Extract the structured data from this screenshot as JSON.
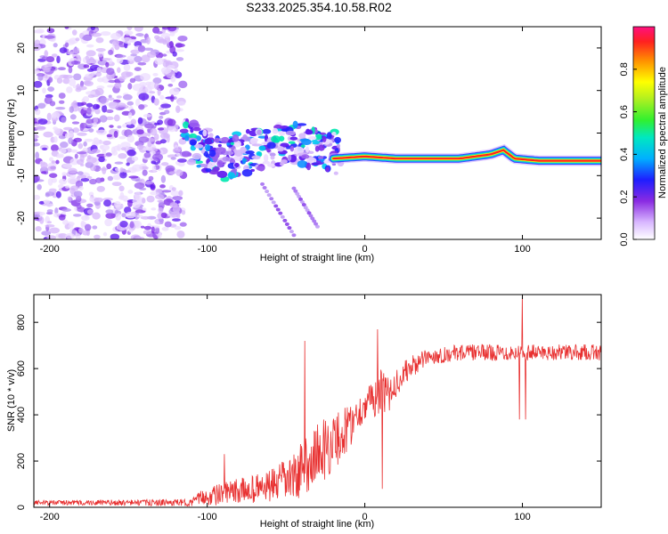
{
  "title": "S233.2025.354.10.58.R02",
  "chart_data": [
    {
      "type": "heatmap",
      "title": "S233.2025.354.10.58.R02",
      "xlabel": "Height of straight line (km)",
      "ylabel": "Frequency (Hz)",
      "xlim": [
        -210,
        150
      ],
      "ylim": [
        -25,
        25
      ],
      "xticks": [
        -200,
        -100,
        0,
        100
      ],
      "yticks": [
        -20,
        -10,
        0,
        10,
        20
      ],
      "noise_region_x": [
        -210,
        -115
      ],
      "scattered_region_x": [
        -115,
        -15
      ],
      "scattered_center_freq": [
        [
          -110,
          -2
        ],
        [
          -90,
          -6
        ],
        [
          -70,
          -4
        ],
        [
          -50,
          -3
        ],
        [
          -30,
          -3
        ],
        [
          -15,
          -5
        ]
      ],
      "streaks": [
        [
          -65,
          -12,
          -45,
          -24
        ],
        [
          -45,
          -13,
          -30,
          -22
        ]
      ],
      "line_points": [
        [
          -20,
          -6
        ],
        [
          0,
          -5.5
        ],
        [
          20,
          -6
        ],
        [
          60,
          -6
        ],
        [
          80,
          -5
        ],
        [
          88,
          -4
        ],
        [
          95,
          -6
        ],
        [
          110,
          -6.5
        ],
        [
          150,
          -6.5
        ]
      ],
      "colorbar": {
        "label": "Normalized spectral amplitude",
        "ticks": [
          0.0,
          0.2,
          0.4,
          0.6,
          0.8
        ],
        "range": [
          0,
          1
        ]
      }
    },
    {
      "type": "line",
      "xlabel": "Height of straight line (km)",
      "ylabel": "SNR (10 * v/v)",
      "xlim": [
        -210,
        150
      ],
      "ylim": [
        0,
        920
      ],
      "xticks": [
        -200,
        -100,
        0,
        100
      ],
      "yticks": [
        0,
        200,
        400,
        600,
        800
      ],
      "series": [
        {
          "name": "SNR",
          "color": "#e83030",
          "envelope": [
            [
              -210,
              20
            ],
            [
              -110,
              20
            ],
            [
              -105,
              40
            ],
            [
              -80,
              70
            ],
            [
              -60,
              90
            ],
            [
              -45,
              130
            ],
            [
              -38,
              180
            ],
            [
              -30,
              230
            ],
            [
              -20,
              280
            ],
            [
              -12,
              330
            ],
            [
              -5,
              400
            ],
            [
              0,
              440
            ],
            [
              5,
              470
            ],
            [
              10,
              500
            ],
            [
              15,
              480
            ],
            [
              20,
              540
            ],
            [
              28,
              600
            ],
            [
              40,
              650
            ],
            [
              60,
              670
            ],
            [
              100,
              670
            ],
            [
              150,
              670
            ]
          ],
          "noise": [
            [
              -210,
              10
            ],
            [
              -110,
              15
            ],
            [
              -100,
              40
            ],
            [
              -60,
              70
            ],
            [
              -30,
              140
            ],
            [
              -15,
              120
            ],
            [
              0,
              60
            ],
            [
              10,
              100
            ],
            [
              20,
              60
            ],
            [
              40,
              35
            ],
            [
              150,
              35
            ]
          ],
          "spikes": [
            [
              -89,
              230
            ],
            [
              -38,
              720
            ],
            [
              -15,
              320
            ],
            [
              8,
              770
            ],
            [
              11,
              80
            ],
            [
              98,
              380
            ],
            [
              100,
              920
            ],
            [
              102,
              380
            ]
          ]
        }
      ]
    }
  ]
}
